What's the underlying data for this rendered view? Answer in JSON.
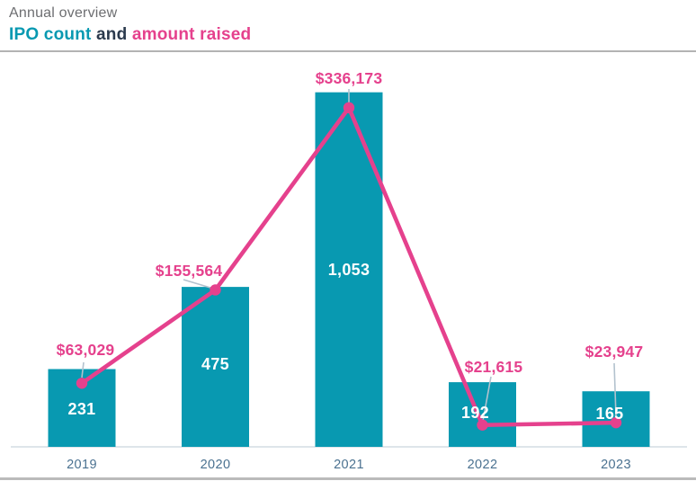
{
  "header": {
    "subtitle": "Annual overview",
    "title_parts": [
      "IPO count",
      " and ",
      "amount raised"
    ]
  },
  "chart_data": {
    "type": "combo",
    "title": "IPO count and amount raised",
    "subtitle": "Annual overview",
    "categories": [
      "2019",
      "2020",
      "2021",
      "2022",
      "2023"
    ],
    "series": [
      {
        "name": "IPO count",
        "type": "bar",
        "color": "#0899B1",
        "values": [
          231,
          475,
          1053,
          192,
          165
        ],
        "labels": [
          "231",
          "475",
          "1,053",
          "192",
          "165"
        ]
      },
      {
        "name": "amount raised",
        "type": "line",
        "color": "#E5418D",
        "values": [
          63029,
          155564,
          336173,
          21615,
          23947
        ],
        "labels": [
          "$63,029",
          "$155,564",
          "$336,173",
          "$21,615",
          "$23,947"
        ]
      }
    ],
    "xlabel": "",
    "ylabel": "",
    "legend": "none",
    "grid": false,
    "bar_ylim": [
      0,
      1170
    ],
    "line_ylim": [
      0,
      390000
    ]
  }
}
